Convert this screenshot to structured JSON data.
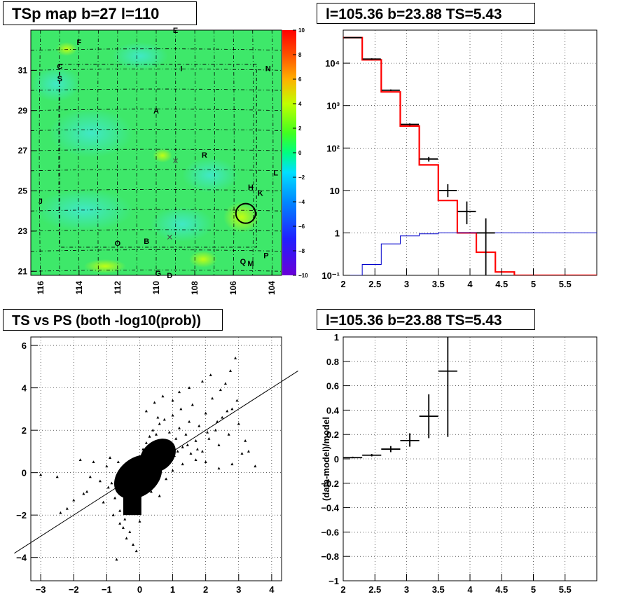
{
  "panels": {
    "tsp_map_title": "TSp map b=27 l=110",
    "spectrum_title": "l=105.36 b=23.88 TS=5.43",
    "scatter_title": "TS vs PS (both -log10(prob))",
    "residual_title": "l=105.36 b=23.88 TS=5.43"
  },
  "chart_data": [
    {
      "type": "heatmap",
      "title": "TSp map b=27 l=110",
      "x_ticks": [
        "116",
        "114",
        "112",
        "110",
        "108",
        "106",
        "104"
      ],
      "y_ticks": [
        "21",
        "23",
        "25",
        "27",
        "29",
        "31"
      ],
      "x_range": [
        116.5,
        103.5
      ],
      "y_range": [
        20.8,
        33.0
      ],
      "color_scale": {
        "min": -10,
        "max": 10,
        "ticks": [
          "10",
          "8",
          "6",
          "4",
          "2",
          "0",
          "−2",
          "−4",
          "−6",
          "−8",
          "−10"
        ]
      },
      "source_labels": [
        {
          "label": "F",
          "l": 114.0,
          "b": 32.4
        },
        {
          "label": "E",
          "l": 109.0,
          "b": 33.0
        },
        {
          "label": "C",
          "l": 115.0,
          "b": 31.2
        },
        {
          "label": "I",
          "l": 108.7,
          "b": 31.1
        },
        {
          "label": "N",
          "l": 104.2,
          "b": 31.1
        },
        {
          "label": "S",
          "l": 115.0,
          "b": 30.6
        },
        {
          "label": "A",
          "l": 110.0,
          "b": 29.0
        },
        {
          "label": "R",
          "l": 107.5,
          "b": 26.8
        },
        {
          "label": "J",
          "l": 116.0,
          "b": 24.5
        },
        {
          "label": "L",
          "l": 103.8,
          "b": 25.9
        },
        {
          "label": "H",
          "l": 105.1,
          "b": 25.2
        },
        {
          "label": "K",
          "l": 104.6,
          "b": 24.9
        },
        {
          "label": "O",
          "l": 112.0,
          "b": 22.4
        },
        {
          "label": "B",
          "l": 110.5,
          "b": 22.5
        },
        {
          "label": "Q",
          "l": 105.5,
          "b": 21.5
        },
        {
          "label": "M",
          "l": 105.1,
          "b": 21.4
        },
        {
          "label": "P",
          "l": 104.3,
          "b": 21.8
        },
        {
          "label": "G",
          "l": 109.9,
          "b": 20.9
        },
        {
          "label": "D",
          "l": 109.3,
          "b": 20.8
        }
      ],
      "highlight_circle": {
        "l": 105.36,
        "b": 23.88
      }
    },
    {
      "type": "line",
      "title": "l=105.36 b=23.88 TS=5.43",
      "y_scale": "log",
      "xlim": [
        2.0,
        6.0
      ],
      "ylim": [
        0.1,
        60000
      ],
      "x_ticks": [
        "2",
        "2.5",
        "3",
        "3.5",
        "4",
        "4.5",
        "5",
        "5.5"
      ],
      "y_ticks": [
        "10⁻¹",
        "1",
        "10",
        "10²",
        "10³",
        "10⁴"
      ],
      "series": [
        {
          "kind": "model-total-step",
          "color": "#ff0000",
          "bin_edges": [
            2.0,
            2.3,
            2.6,
            2.9,
            3.2,
            3.5,
            3.8,
            4.1,
            4.4,
            4.7,
            5.0,
            5.3,
            5.6,
            6.0
          ],
          "values": [
            40000,
            12000,
            2100,
            330,
            40,
            5.8,
            1.0,
            0.35,
            0.12,
            0.1,
            0.1,
            0.1,
            0.1
          ]
        },
        {
          "kind": "second-component-step",
          "color": "#0000cc",
          "bin_edges": [
            2.0,
            2.3,
            2.6,
            2.9,
            3.2,
            3.5,
            3.8,
            4.1,
            4.4,
            4.7,
            5.0,
            5.3,
            5.6,
            6.0
          ],
          "values": [
            0.1,
            0.18,
            0.55,
            0.85,
            0.95,
            1.0,
            1.0,
            1.0,
            1.0,
            1.0,
            1.0,
            1.0,
            1.0
          ]
        },
        {
          "kind": "data-points",
          "color": "#000000",
          "points": [
            {
              "x": 2.15,
              "y": 40000,
              "ylo": 40000,
              "yhi": 40000
            },
            {
              "x": 2.45,
              "y": 12500,
              "ylo": 12000,
              "yhi": 13000
            },
            {
              "x": 2.75,
              "y": 2300,
              "ylo": 2200,
              "yhi": 2400
            },
            {
              "x": 3.05,
              "y": 360,
              "ylo": 340,
              "yhi": 380
            },
            {
              "x": 3.35,
              "y": 55,
              "ylo": 48,
              "yhi": 62
            },
            {
              "x": 3.65,
              "y": 10,
              "ylo": 7,
              "yhi": 14
            },
            {
              "x": 3.95,
              "y": 3.2,
              "ylo": 1.6,
              "yhi": 5.5
            },
            {
              "x": 4.25,
              "y": 1.0,
              "ylo": 0.1,
              "yhi": 2.2
            }
          ]
        }
      ]
    },
    {
      "type": "scatter",
      "title": "TS vs PS (both -log10(prob))",
      "xlim": [
        -3.3,
        4.3
      ],
      "ylim": [
        -5.1,
        6.4
      ],
      "x_ticks": [
        "−3",
        "−2",
        "−1",
        "0",
        "1",
        "2",
        "3",
        "4"
      ],
      "y_ticks": [
        "−4",
        "−2",
        "0",
        "2",
        "4",
        "6"
      ],
      "reference_line": {
        "slope": 1,
        "intercept": 0
      },
      "points": [
        [
          -0.85,
          -0.5
        ],
        [
          -0.7,
          -0.3
        ],
        [
          -0.6,
          -0.8
        ],
        [
          -0.5,
          0.2
        ],
        [
          -0.4,
          -0.6
        ],
        [
          -0.3,
          -1.1
        ],
        [
          -0.25,
          0.4
        ],
        [
          -0.2,
          -1.5
        ],
        [
          -0.15,
          -0.2
        ],
        [
          -0.1,
          -1.9
        ],
        [
          -0.05,
          0.6
        ],
        [
          0.0,
          -2.3
        ],
        [
          0.05,
          0.8
        ],
        [
          0.1,
          1.1
        ],
        [
          0.15,
          0.3
        ],
        [
          0.2,
          1.4
        ],
        [
          0.25,
          0.9
        ],
        [
          0.3,
          1.7
        ],
        [
          0.35,
          0.5
        ],
        [
          0.4,
          2.0
        ],
        [
          0.45,
          1.2
        ],
        [
          0.5,
          1.8
        ],
        [
          0.55,
          0.7
        ],
        [
          0.6,
          2.3
        ],
        [
          0.65,
          1.5
        ],
        [
          0.7,
          0.9
        ],
        [
          0.75,
          2.5
        ],
        [
          0.8,
          1.3
        ],
        [
          0.9,
          1.9
        ],
        [
          1.0,
          2.7
        ],
        [
          1.05,
          0.8
        ],
        [
          1.1,
          1.6
        ],
        [
          1.2,
          2.1
        ],
        [
          1.25,
          3.0
        ],
        [
          1.3,
          1.2
        ],
        [
          1.4,
          1.8
        ],
        [
          1.5,
          2.4
        ],
        [
          1.55,
          0.9
        ],
        [
          1.6,
          3.2
        ],
        [
          1.7,
          1.5
        ],
        [
          1.8,
          2.2
        ],
        [
          1.9,
          1.0
        ],
        [
          2.0,
          2.8
        ],
        [
          2.1,
          1.6
        ],
        [
          2.2,
          3.5
        ],
        [
          2.3,
          2.0
        ],
        [
          2.4,
          1.3
        ],
        [
          2.5,
          2.6
        ],
        [
          2.6,
          4.2
        ],
        [
          2.7,
          1.8
        ],
        [
          2.8,
          3.0
        ],
        [
          2.9,
          5.4
        ],
        [
          3.0,
          2.3
        ],
        [
          3.1,
          0.9
        ],
        [
          3.2,
          1.5
        ],
        [
          3.5,
          0.3
        ],
        [
          -1.0,
          0.3
        ],
        [
          -1.2,
          -0.4
        ],
        [
          -1.4,
          0.5
        ],
        [
          -1.6,
          -0.9
        ],
        [
          -1.8,
          0.6
        ],
        [
          -2.0,
          -1.3
        ],
        [
          -2.2,
          -1.7
        ],
        [
          -2.5,
          -0.2
        ],
        [
          -3.0,
          -0.1
        ],
        [
          -1.1,
          -1.4
        ],
        [
          -0.9,
          0.7
        ],
        [
          -0.6,
          -1.8
        ],
        [
          -0.5,
          -2.6
        ],
        [
          -0.4,
          -3.1
        ],
        [
          -0.3,
          -2.8
        ],
        [
          -0.2,
          -3.4
        ],
        [
          -0.1,
          -3.7
        ],
        [
          -0.7,
          -4.1
        ],
        [
          -0.45,
          -2.2
        ],
        [
          -0.35,
          -1.6
        ],
        [
          -0.65,
          0.5
        ],
        [
          -0.75,
          -1.2
        ],
        [
          0.3,
          -0.4
        ],
        [
          0.5,
          -0.2
        ],
        [
          0.8,
          -0.3
        ],
        [
          1.0,
          0.1
        ],
        [
          1.3,
          0.4
        ],
        [
          1.7,
          0.6
        ],
        [
          2.0,
          0.5
        ],
        [
          2.4,
          0.2
        ],
        [
          2.8,
          0.4
        ],
        [
          0.2,
          2.9
        ],
        [
          0.45,
          3.3
        ],
        [
          0.7,
          3.6
        ],
        [
          1.2,
          3.8
        ],
        [
          1.5,
          4.0
        ],
        [
          1.9,
          4.3
        ],
        [
          2.15,
          4.6
        ],
        [
          2.45,
          3.9
        ],
        [
          2.75,
          4.8
        ],
        [
          1.0,
          3.4
        ],
        [
          0.55,
          2.6
        ],
        [
          0.35,
          -0.9
        ],
        [
          0.6,
          -1.1
        ],
        [
          -0.95,
          -0.7
        ],
        [
          -0.55,
          0.1
        ],
        [
          -0.25,
          -0.3
        ],
        [
          0.15,
          -0.6
        ],
        [
          0.4,
          0.2
        ],
        [
          0.85,
          0.6
        ],
        [
          1.15,
          1.0
        ],
        [
          1.45,
          1.3
        ],
        [
          1.75,
          1.1
        ],
        [
          2.05,
          1.9
        ],
        [
          2.35,
          2.4
        ],
        [
          2.65,
          2.9
        ],
        [
          2.95,
          3.4
        ],
        [
          3.3,
          1.0
        ],
        [
          -1.5,
          -0.2
        ],
        [
          -1.7,
          -1.0
        ],
        [
          -2.4,
          -1.9
        ],
        [
          -0.8,
          -2.0
        ],
        [
          -0.6,
          -2.4
        ]
      ]
    },
    {
      "type": "scatter",
      "title": "l=105.36 b=23.88 TS=5.43",
      "ylabel": "(data-model)/model",
      "xlim": [
        2.0,
        6.0
      ],
      "ylim": [
        -1.0,
        1.0
      ],
      "x_ticks": [
        "2",
        "2.5",
        "3",
        "3.5",
        "4",
        "4.5",
        "5",
        "5.5"
      ],
      "y_ticks": [
        "−1",
        "−0.8",
        "−0.6",
        "−0.4",
        "−0.2",
        "0",
        "0.2",
        "0.4",
        "0.6",
        "0.8",
        "1"
      ],
      "points": [
        {
          "x": 2.15,
          "y": 0.01,
          "ylo": 0.005,
          "yhi": 0.018,
          "xerr": 0.15
        },
        {
          "x": 2.45,
          "y": 0.03,
          "ylo": 0.02,
          "yhi": 0.04,
          "xerr": 0.15
        },
        {
          "x": 2.75,
          "y": 0.08,
          "ylo": 0.055,
          "yhi": 0.105,
          "xerr": 0.15
        },
        {
          "x": 3.05,
          "y": 0.15,
          "ylo": 0.1,
          "yhi": 0.21,
          "xerr": 0.15
        },
        {
          "x": 3.35,
          "y": 0.35,
          "ylo": 0.17,
          "yhi": 0.53,
          "xerr": 0.15
        },
        {
          "x": 3.65,
          "y": 0.72,
          "ylo": 0.18,
          "yhi": 1.0,
          "xerr": 0.15
        }
      ]
    }
  ]
}
